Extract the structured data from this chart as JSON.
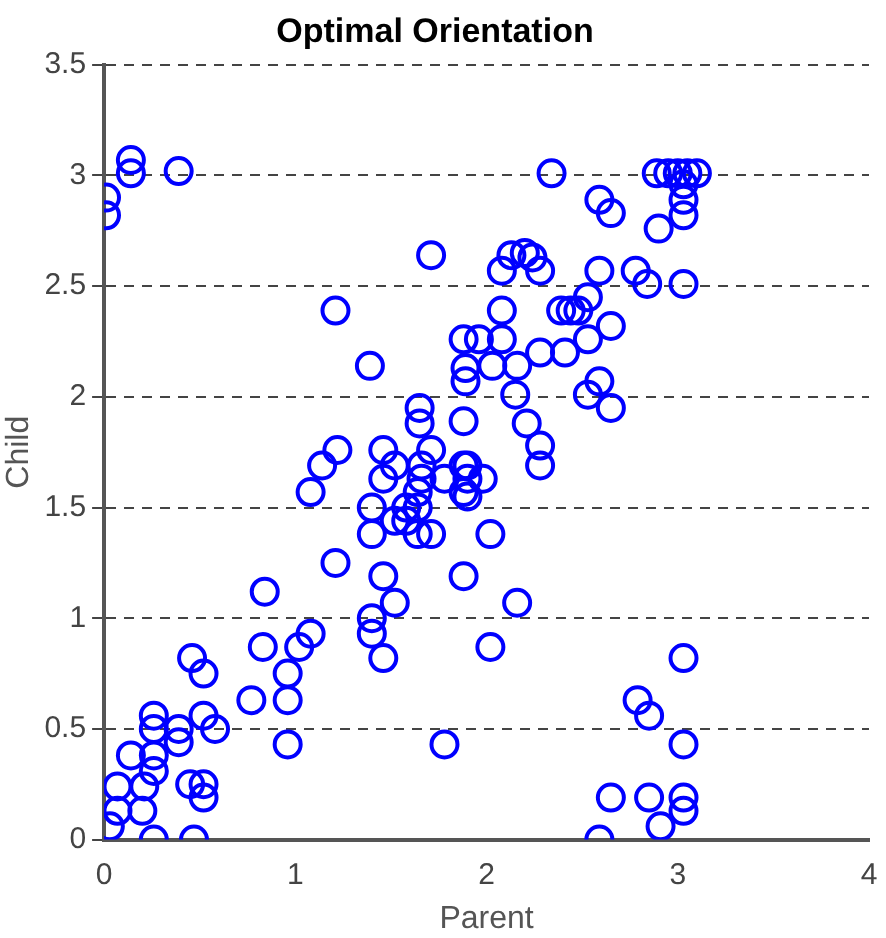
{
  "chart_data": {
    "type": "scatter",
    "title": "Optimal Orientation",
    "xlabel": "Parent",
    "ylabel": "Child",
    "x": [
      0.01,
      0.01,
      0.14,
      0.14,
      0.39,
      1.71,
      1.21,
      1.39,
      1.65,
      1.65,
      1.88,
      1.89,
      1.89,
      1.88,
      2.34,
      2.89,
      2.95,
      3.0,
      3.05,
      3.1,
      3.03,
      3.03,
      3.03,
      2.9,
      2.59,
      2.65,
      2.13,
      2.2,
      2.24,
      2.08,
      2.28,
      2.59,
      2.78,
      2.84,
      3.03,
      2.53,
      2.39,
      2.44,
      2.48,
      2.08,
      2.65,
      1.96,
      2.08,
      2.53,
      2.28,
      2.41,
      2.03,
      2.16,
      2.59,
      2.53,
      2.65,
      2.15,
      2.21,
      2.28,
      2.28,
      1.9,
      1.9,
      1.98,
      1.9,
      2.02,
      2.16,
      2.02,
      3.03,
      2.79,
      2.85,
      3.03,
      2.65,
      2.85,
      3.03,
      3.03,
      2.91,
      2.59,
      0.03,
      0.07,
      0.07,
      0.14,
      0.2,
      0.21,
      0.26,
      0.26,
      0.26,
      0.26,
      0.26,
      0.39,
      0.39,
      0.47,
      0.46,
      0.52,
      0.52,
      0.58,
      0.45,
      0.52,
      0.52,
      0.77,
      0.84,
      0.83,
      0.96,
      0.96,
      0.96,
      1.02,
      1.08,
      1.08,
      1.14,
      1.22,
      1.21,
      1.4,
      1.4,
      1.4,
      1.4,
      1.46,
      1.52,
      1.46,
      1.46,
      1.46,
      1.52,
      1.52,
      1.58,
      1.58,
      1.64,
      1.64,
      1.64,
      1.71,
      1.71,
      1.66,
      1.66,
      1.78,
      1.88,
      1.88,
      1.88,
      1.78
    ],
    "values": [
      2.9,
      2.82,
      3.07,
      3.01,
      3.02,
      2.64,
      2.39,
      2.14,
      1.95,
      1.88,
      2.26,
      2.13,
      2.07,
      1.89,
      3.01,
      3.01,
      3.01,
      3.01,
      3.01,
      3.01,
      2.96,
      2.89,
      2.82,
      2.76,
      2.89,
      2.83,
      2.64,
      2.65,
      2.63,
      2.57,
      2.57,
      2.57,
      2.57,
      2.51,
      2.51,
      2.45,
      2.39,
      2.39,
      2.39,
      2.39,
      2.32,
      2.26,
      2.26,
      2.26,
      2.2,
      2.2,
      2.14,
      2.14,
      2.07,
      2.01,
      1.95,
      2.01,
      1.88,
      1.78,
      1.69,
      1.69,
      1.63,
      1.63,
      1.55,
      1.38,
      1.07,
      0.87,
      0.82,
      0.63,
      0.56,
      0.43,
      0.19,
      0.19,
      0.19,
      0.13,
      0.06,
      0,
      0.06,
      0.24,
      0.13,
      0.38,
      0.13,
      0.24,
      0,
      0.56,
      0.5,
      0.38,
      0.31,
      0.5,
      0.44,
      0,
      0.82,
      0.75,
      0.56,
      0.5,
      0.25,
      0.25,
      0.19,
      0.63,
      1.12,
      0.87,
      0.75,
      0.63,
      0.43,
      0.87,
      0.93,
      1.57,
      1.69,
      1.76,
      1.25,
      1.5,
      1.38,
      1.0,
      0.93,
      0.82,
      1.07,
      1.19,
      1.76,
      1.63,
      1.69,
      1.44,
      1.44,
      1.5,
      1.57,
      1.5,
      1.38,
      1.38,
      1.76,
      1.69,
      1.63,
      1.63,
      1.69,
      1.57,
      1.19,
      0.43
    ],
    "color": "#0000ff",
    "marker": "circle",
    "xlim": [
      0,
      4
    ],
    "ylim": [
      0,
      3.5
    ],
    "xticks": [
      0,
      1,
      2,
      3,
      4
    ],
    "yticks": [
      0,
      0.5,
      1,
      1.5,
      2,
      2.5,
      3,
      3.5
    ],
    "grid": "y",
    "line_style": "dashed",
    "legend": false
  }
}
